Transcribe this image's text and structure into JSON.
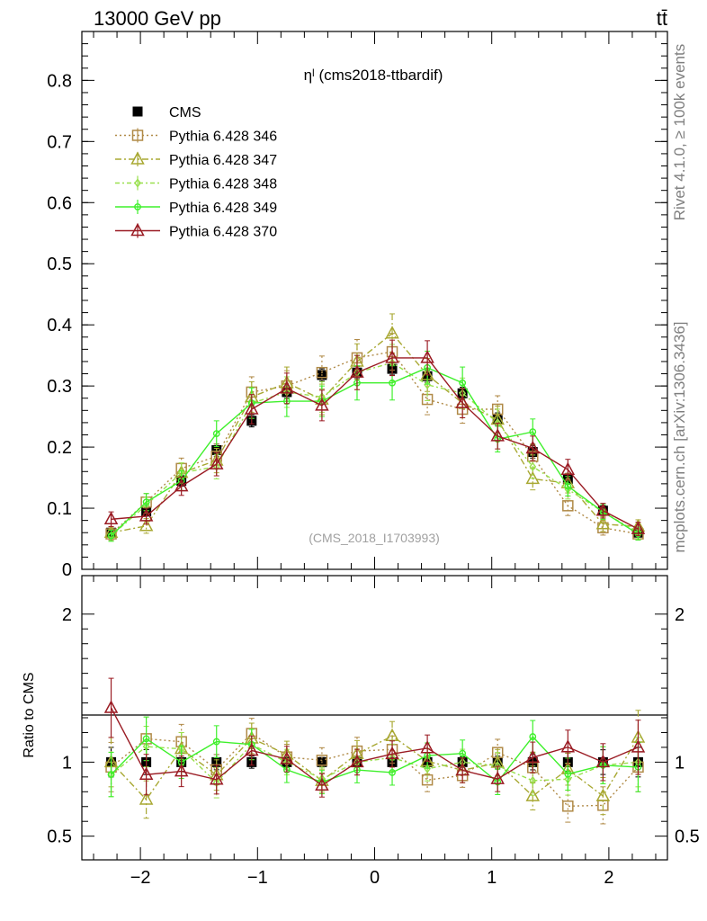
{
  "header": {
    "left": "13000 GeV pp",
    "right": "tt̄"
  },
  "side": {
    "rivet": "Rivet 4.1.0, ≥ 100k events",
    "mcplots": "mcplots.cern.ch [arXiv:1306.3436]"
  },
  "chart_data": {
    "type": "scatter",
    "title": "ηˡ (cms2018-ttbardif)",
    "watermark": "(CMS_2018_I1703993)",
    "xlim": [
      -2.5,
      2.5
    ],
    "xticks": [
      -2,
      -1,
      0,
      1,
      2
    ],
    "xtick_labels": [
      "−2",
      "−1",
      "0",
      "1",
      "2"
    ],
    "x": [
      -2.25,
      -1.95,
      -1.65,
      -1.35,
      -1.05,
      -0.75,
      -0.45,
      -0.15,
      0.15,
      0.45,
      0.75,
      1.05,
      1.35,
      1.65,
      1.95,
      2.25
    ],
    "main": {
      "ylim": [
        0,
        0.88
      ],
      "yticks": [
        0,
        0.1,
        0.2,
        0.3,
        0.4,
        0.5,
        0.6,
        0.7,
        0.8
      ],
      "ytick_labels": [
        "0",
        "0.1",
        "0.2",
        "0.3",
        "0.4",
        "0.5",
        "0.6",
        "0.7",
        "0.8"
      ]
    },
    "ratio": {
      "ylabel": "Ratio to CMS",
      "ylim": [
        0.34,
        2.26
      ],
      "yticks": [
        0.5,
        1,
        2
      ],
      "ytick_labels": [
        "0.5",
        "1",
        "2"
      ]
    },
    "series": [
      {
        "name": "CMS",
        "color": "#000000",
        "marker": "filled-square",
        "dash": "",
        "values": [
          0.06,
          0.095,
          0.145,
          0.195,
          0.243,
          0.29,
          0.318,
          0.322,
          0.328,
          0.316,
          0.288,
          0.246,
          0.192,
          0.148,
          0.096,
          0.06
        ],
        "err": [
          0.006,
          0.008,
          0.009,
          0.01,
          0.01,
          0.01,
          0.01,
          0.01,
          0.01,
          0.01,
          0.01,
          0.01,
          0.01,
          0.009,
          0.008,
          0.006
        ]
      },
      {
        "name": "Pythia 6.428 346",
        "color": "#b08a47",
        "marker": "open-square",
        "dash": "2,3",
        "values": [
          0.058,
          0.11,
          0.165,
          0.185,
          0.29,
          0.3,
          0.322,
          0.346,
          0.356,
          0.278,
          0.262,
          0.262,
          0.185,
          0.104,
          0.068,
          0.058
        ],
        "err": [
          0.01,
          0.014,
          0.017,
          0.02,
          0.025,
          0.025,
          0.027,
          0.03,
          0.03,
          0.025,
          0.023,
          0.022,
          0.02,
          0.016,
          0.012,
          0.01
        ]
      },
      {
        "name": "Pythia 6.428 347",
        "color": "#a8a832",
        "marker": "open-triangle",
        "dash": "7,3,2,3",
        "values": [
          0.06,
          0.071,
          0.158,
          0.178,
          0.282,
          0.305,
          0.278,
          0.34,
          0.386,
          0.318,
          0.272,
          0.245,
          0.148,
          0.141,
          0.074,
          0.07
        ],
        "err": [
          0.01,
          0.012,
          0.016,
          0.02,
          0.025,
          0.026,
          0.025,
          0.029,
          0.032,
          0.027,
          0.024,
          0.022,
          0.018,
          0.016,
          0.012,
          0.011
        ]
      },
      {
        "name": "Pythia 6.428 348",
        "color": "#99e04d",
        "marker": "open-diamond",
        "dash": "5,3,2,3",
        "values": [
          0.055,
          0.105,
          0.158,
          0.168,
          0.272,
          0.29,
          0.282,
          0.322,
          0.338,
          0.302,
          0.288,
          0.24,
          0.168,
          0.131,
          0.094,
          0.06
        ],
        "err": [
          0.009,
          0.013,
          0.016,
          0.02,
          0.025,
          0.025,
          0.025,
          0.028,
          0.03,
          0.026,
          0.025,
          0.022,
          0.019,
          0.016,
          0.012,
          0.01
        ]
      },
      {
        "name": "Pythia 6.428 349",
        "color": "#3ef02b",
        "marker": "open-circle",
        "dash": "",
        "values": [
          0.055,
          0.11,
          0.145,
          0.222,
          0.272,
          0.275,
          0.275,
          0.305,
          0.305,
          0.33,
          0.305,
          0.213,
          0.225,
          0.136,
          0.094,
          0.058
        ],
        "err": [
          0.009,
          0.014,
          0.016,
          0.021,
          0.025,
          0.025,
          0.025,
          0.028,
          0.028,
          0.027,
          0.026,
          0.021,
          0.021,
          0.016,
          0.012,
          0.01
        ]
      },
      {
        "name": "Pythia 6.428 370",
        "color": "#9a1b23",
        "marker": "open-triangle",
        "dash": "",
        "values": [
          0.082,
          0.087,
          0.136,
          0.172,
          0.262,
          0.296,
          0.268,
          0.322,
          0.346,
          0.346,
          0.272,
          0.218,
          0.198,
          0.163,
          0.096,
          0.066
        ],
        "err": [
          0.012,
          0.013,
          0.015,
          0.019,
          0.024,
          0.025,
          0.025,
          0.028,
          0.029,
          0.028,
          0.024,
          0.021,
          0.02,
          0.017,
          0.012,
          0.011
        ]
      }
    ]
  }
}
